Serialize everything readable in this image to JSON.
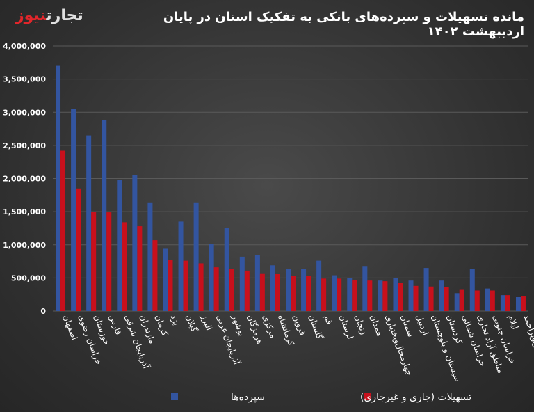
{
  "header": {
    "title": "مانده تسهیلات و سپرده‌های بانکی به تفکیک استان در پایان اردیبهشت ۱۴۰۲",
    "logo_part1": "تجارت",
    "logo_part2": "نیوز"
  },
  "colors": {
    "deposits": "#3355a0",
    "loans": "#c8101c",
    "grid": "#5a5a5a"
  },
  "chart_data": {
    "type": "bar",
    "title": "مانده تسهیلات و سپرده‌های بانکی به تفکیک استان در پایان اردیبهشت ۱۴۰۲",
    "ylim": [
      0,
      4000000
    ],
    "yticks": [
      0,
      500000,
      1000000,
      1500000,
      2000000,
      2500000,
      3000000,
      3500000,
      4000000
    ],
    "ytick_labels": [
      "0",
      "500,000",
      "1,000,000",
      "1,500,000",
      "2,000,000",
      "2,500,000",
      "3,000,000",
      "3,500,000",
      "4,000,000"
    ],
    "grid": true,
    "legend": "bottom",
    "categories": [
      "اصفهان",
      "خراسان رضوی",
      "خوزستان",
      "فارس",
      "آذربایجان شرقی",
      "مازندران",
      "کرمان",
      "یزد",
      "گیلان",
      "البرز",
      "آذربایجان غربی",
      "بوشهر",
      "هرمزگان",
      "مرکزی",
      "کرمانشاه",
      "قزوین",
      "گلستان",
      "قم",
      "لرستان",
      "زنجان",
      "همدان",
      "چهارمحال‌وبختیاری",
      "سمنان",
      "اردبیل",
      "سیستان و بلوچستان",
      "کردستان",
      "خراسان شمالی",
      "مناطق آزاد تجاری",
      "خراسان جنوبی",
      "ایلام",
      "کهگیلویه وبویراحمد"
    ],
    "series": [
      {
        "name": "سپرده‌ها",
        "values": [
          3700000,
          3050000,
          2650000,
          2880000,
          1980000,
          2050000,
          1640000,
          940000,
          1350000,
          1640000,
          1010000,
          1250000,
          820000,
          840000,
          690000,
          640000,
          640000,
          760000,
          540000,
          500000,
          680000,
          460000,
          500000,
          460000,
          650000,
          460000,
          270000,
          640000,
          340000,
          240000,
          210000
        ]
      },
      {
        "name": "تسهیلات (جاری و غیرجاری)",
        "values": [
          2420000,
          1850000,
          1500000,
          1490000,
          1340000,
          1280000,
          1070000,
          770000,
          760000,
          720000,
          660000,
          640000,
          610000,
          570000,
          560000,
          530000,
          530000,
          490000,
          490000,
          470000,
          460000,
          450000,
          430000,
          380000,
          370000,
          360000,
          330000,
          310000,
          310000,
          240000,
          220000
        ]
      }
    ]
  }
}
